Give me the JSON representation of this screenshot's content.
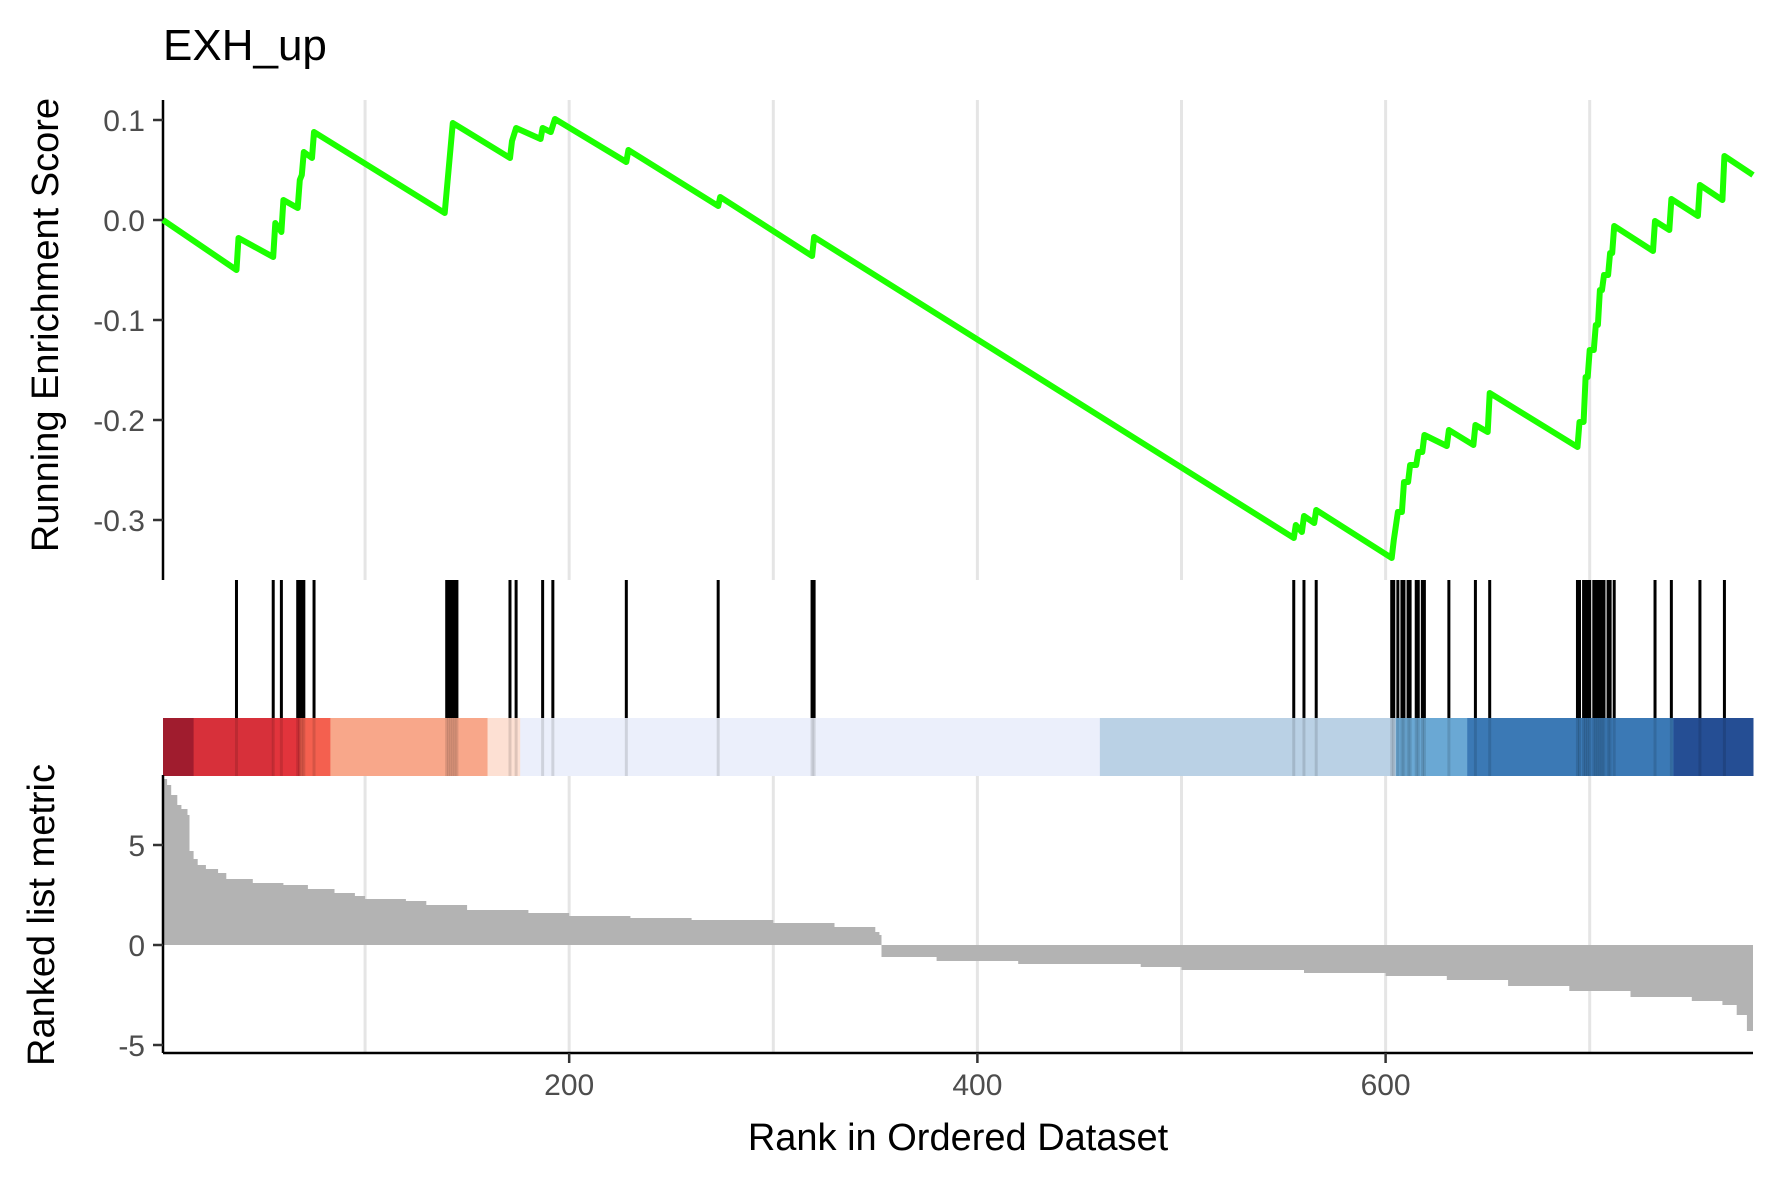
{
  "chart_data": {
    "type": "line",
    "title": "EXH_up",
    "xlabel": "Rank in Ordered Dataset",
    "xlim": [
      1,
      780
    ],
    "x_ticks": [
      200,
      400,
      600
    ],
    "x_gridlines": [
      100,
      200,
      300,
      400,
      500,
      600,
      700
    ],
    "panels": [
      {
        "name": "running-es",
        "ylabel": "Running Enrichment Score",
        "ylim": [
          -0.36,
          0.12
        ],
        "y_ticks": [
          0.1,
          0.0,
          -0.1,
          -0.2,
          -0.3
        ],
        "y_tick_labels": [
          "0.1",
          "0.0",
          "-0.1",
          "-0.2",
          "-0.3"
        ],
        "line_color": "#1cff00",
        "points": [
          [
            1,
            0.0
          ],
          [
            37,
            -0.05
          ],
          [
            38,
            -0.018
          ],
          [
            55,
            -0.037
          ],
          [
            56,
            -0.003
          ],
          [
            59,
            -0.012
          ],
          [
            60,
            0.02
          ],
          [
            67,
            0.012
          ],
          [
            68,
            0.04
          ],
          [
            69,
            0.045
          ],
          [
            70,
            0.068
          ],
          [
            74,
            0.062
          ],
          [
            75,
            0.088
          ],
          [
            139,
            0.007
          ],
          [
            143,
            0.097
          ],
          [
            171,
            0.062
          ],
          [
            172,
            0.079
          ],
          [
            174,
            0.092
          ],
          [
            186,
            0.081
          ],
          [
            187,
            0.092
          ],
          [
            191,
            0.088
          ],
          [
            193,
            0.101
          ],
          [
            228,
            0.058
          ],
          [
            229,
            0.07
          ],
          [
            273,
            0.014
          ],
          [
            274,
            0.023
          ],
          [
            319,
            -0.036
          ],
          [
            320,
            -0.017
          ],
          [
            555,
            -0.318
          ],
          [
            556,
            -0.305
          ],
          [
            559,
            -0.312
          ],
          [
            560,
            -0.296
          ],
          [
            565,
            -0.303
          ],
          [
            566,
            -0.29
          ],
          [
            603,
            -0.338
          ],
          [
            604,
            -0.32
          ],
          [
            606,
            -0.292
          ],
          [
            608,
            -0.292
          ],
          [
            609,
            -0.262
          ],
          [
            611,
            -0.262
          ],
          [
            612,
            -0.245
          ],
          [
            615,
            -0.245
          ],
          [
            616,
            -0.232
          ],
          [
            618,
            -0.232
          ],
          [
            619,
            -0.215
          ],
          [
            630,
            -0.226
          ],
          [
            631,
            -0.21
          ],
          [
            643,
            -0.225
          ],
          [
            644,
            -0.205
          ],
          [
            650,
            -0.212
          ],
          [
            651,
            -0.173
          ],
          [
            694,
            -0.227
          ],
          [
            695,
            -0.202
          ],
          [
            697,
            -0.202
          ],
          [
            698,
            -0.157
          ],
          [
            699,
            -0.157
          ],
          [
            700,
            -0.13
          ],
          [
            702,
            -0.13
          ],
          [
            703,
            -0.105
          ],
          [
            704,
            -0.105
          ],
          [
            705,
            -0.07
          ],
          [
            706,
            -0.07
          ],
          [
            707,
            -0.055
          ],
          [
            709,
            -0.055
          ],
          [
            710,
            -0.033
          ],
          [
            711,
            -0.033
          ],
          [
            712,
            -0.006
          ],
          [
            731,
            -0.031
          ],
          [
            732,
            -0.001
          ],
          [
            739,
            -0.01
          ],
          [
            740,
            0.021
          ],
          [
            753,
            0.004
          ],
          [
            754,
            0.035
          ],
          [
            765,
            0.02
          ],
          [
            766,
            0.064
          ],
          [
            780,
            0.045
          ]
        ]
      },
      {
        "name": "gene-hits",
        "hits": [
          37,
          55,
          59,
          67,
          68,
          69,
          70,
          75,
          140,
          141,
          142,
          143,
          144,
          145,
          171,
          174,
          187,
          192,
          228,
          273,
          319,
          320,
          555,
          560,
          566,
          603,
          604,
          606,
          608,
          609,
          611,
          612,
          615,
          616,
          618,
          619,
          631,
          644,
          651,
          694,
          695,
          697,
          698,
          699,
          700,
          702,
          703,
          704,
          705,
          706,
          707,
          709,
          710,
          712,
          732,
          740,
          754,
          766
        ]
      },
      {
        "name": "rank-colorbar",
        "segments": [
          {
            "from": 1,
            "to": 16,
            "color": "#a01c2e"
          },
          {
            "from": 16,
            "to": 55,
            "color": "#d7303a"
          },
          {
            "from": 55,
            "to": 68,
            "color": "#e2343c"
          },
          {
            "from": 68,
            "to": 83,
            "color": "#f4604f"
          },
          {
            "from": 83,
            "to": 160,
            "color": "#f8a78a"
          },
          {
            "from": 160,
            "to": 176,
            "color": "#fde0d3"
          },
          {
            "from": 176,
            "to": 460,
            "color": "#ebeffb"
          },
          {
            "from": 460,
            "to": 605,
            "color": "#bad1e5"
          },
          {
            "from": 605,
            "to": 640,
            "color": "#6aa8d4"
          },
          {
            "from": 640,
            "to": 741,
            "color": "#3b79b5"
          },
          {
            "from": 741,
            "to": 780,
            "color": "#254e94"
          }
        ]
      },
      {
        "name": "ranked-metric",
        "ylabel": "Ranked list metric",
        "ylim": [
          -5.4,
          8.5
        ],
        "y_ticks": [
          5,
          0,
          -5
        ],
        "y_tick_labels": [
          "5",
          "0",
          "-5"
        ],
        "bar_color": "#b3b3b3",
        "metric_curve": [
          [
            1,
            8.3
          ],
          [
            3,
            8.0
          ],
          [
            5,
            7.5
          ],
          [
            8,
            7.0
          ],
          [
            10,
            6.8
          ],
          [
            13,
            6.5
          ],
          [
            14,
            4.7
          ],
          [
            16,
            4.3
          ],
          [
            18,
            4.0
          ],
          [
            22,
            3.8
          ],
          [
            28,
            3.6
          ],
          [
            32,
            3.3
          ],
          [
            45,
            3.1
          ],
          [
            60,
            3.0
          ],
          [
            72,
            2.8
          ],
          [
            85,
            2.6
          ],
          [
            95,
            2.45
          ],
          [
            100,
            2.3
          ],
          [
            120,
            2.2
          ],
          [
            130,
            2.0
          ],
          [
            150,
            1.75
          ],
          [
            180,
            1.6
          ],
          [
            200,
            1.45
          ],
          [
            230,
            1.35
          ],
          [
            260,
            1.25
          ],
          [
            300,
            1.1
          ],
          [
            330,
            0.9
          ],
          [
            350,
            0.65
          ],
          [
            352,
            0.5
          ],
          [
            353,
            -0.6
          ],
          [
            380,
            -0.8
          ],
          [
            420,
            -0.95
          ],
          [
            480,
            -1.1
          ],
          [
            500,
            -1.25
          ],
          [
            560,
            -1.4
          ],
          [
            600,
            -1.55
          ],
          [
            630,
            -1.75
          ],
          [
            660,
            -2.05
          ],
          [
            690,
            -2.3
          ],
          [
            720,
            -2.6
          ],
          [
            750,
            -2.8
          ],
          [
            765,
            -3.0
          ],
          [
            772,
            -3.5
          ],
          [
            777,
            -4.3
          ],
          [
            780,
            -5.1
          ]
        ]
      }
    ]
  }
}
